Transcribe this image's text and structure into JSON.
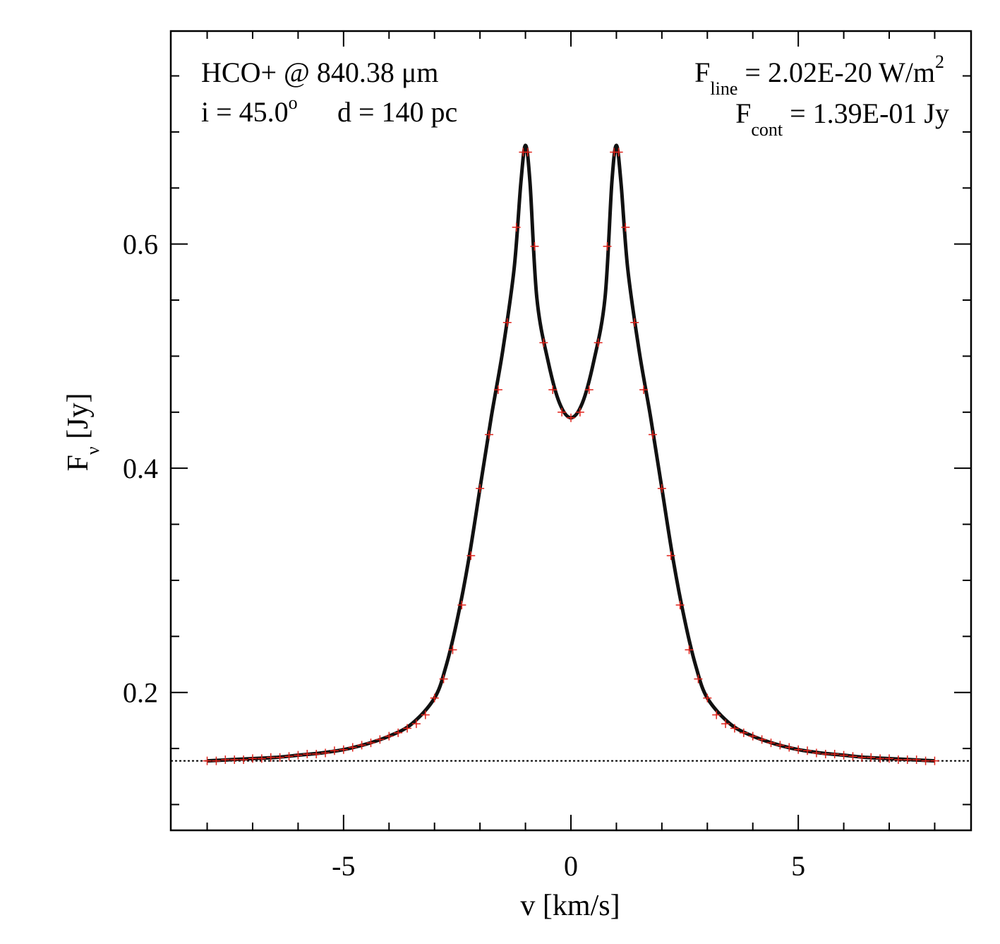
{
  "chart_data": {
    "type": "line",
    "title": "",
    "xlabel": "v [km/s]",
    "ylabel": {
      "main": "F",
      "sub": "ν",
      "rest": " [Jy]"
    },
    "xlim": [
      -8.8,
      8.8
    ],
    "ylim": [
      0.077,
      0.79
    ],
    "x_ticks": [
      -5,
      0,
      5
    ],
    "x_tick_labels": [
      "-5",
      "0",
      "5"
    ],
    "x_minor_step": 1,
    "y_ticks": [
      0.2,
      0.4,
      0.6
    ],
    "y_tick_labels": [
      "0.2",
      "0.4",
      "0.6"
    ],
    "y_minor_step": 0.05,
    "grid": false,
    "legend": "none",
    "annotations": {
      "species": "HCO+ @ 840.38 μm",
      "geom_i_prefix": "i = 45.0",
      "geom_i_deg": "o",
      "geom_d": "d = 140 pc",
      "fline_main": "F",
      "fline_sub": "line",
      "fline_value": " = 2.02E-20 W/m",
      "fline_exp": "2",
      "fcont_main": "F",
      "fcont_sub": "cont",
      "fcont_value": " = 1.39E-01 Jy"
    },
    "continuum_level": 0.139,
    "series": [
      {
        "style": "solid-black-thick",
        "x": [
          -8.0,
          -7.5,
          -7.0,
          -6.5,
          -6.0,
          -5.5,
          -5.0,
          -4.5,
          -4.0,
          -3.5,
          -3.0,
          -2.75,
          -2.5,
          -2.25,
          -2.0,
          -1.75,
          -1.5,
          -1.25,
          -1.1,
          -1.0,
          -0.9,
          -0.75,
          -0.5,
          -0.25,
          0.0,
          0.25,
          0.5,
          0.75,
          0.9,
          1.0,
          1.1,
          1.25,
          1.5,
          1.75,
          2.0,
          2.25,
          2.5,
          2.75,
          3.0,
          3.5,
          4.0,
          4.5,
          5.0,
          5.5,
          6.0,
          6.5,
          7.0,
          7.5,
          8.0
        ],
        "y": [
          0.139,
          0.14,
          0.141,
          0.142,
          0.144,
          0.146,
          0.149,
          0.154,
          0.161,
          0.172,
          0.195,
          0.223,
          0.265,
          0.318,
          0.382,
          0.446,
          0.505,
          0.578,
          0.655,
          0.688,
          0.655,
          0.552,
          0.495,
          0.458,
          0.445,
          0.458,
          0.495,
          0.552,
          0.655,
          0.688,
          0.655,
          0.578,
          0.505,
          0.446,
          0.382,
          0.318,
          0.265,
          0.223,
          0.195,
          0.172,
          0.161,
          0.154,
          0.149,
          0.146,
          0.144,
          0.142,
          0.141,
          0.14,
          0.139
        ]
      }
    ],
    "markers": {
      "style": "red-plus",
      "color": "#e0221a",
      "x": [
        -8.0,
        -7.8,
        -7.6,
        -7.4,
        -7.2,
        -7.0,
        -6.8,
        -6.6,
        -6.4,
        -6.2,
        -6.0,
        -5.8,
        -5.6,
        -5.4,
        -5.2,
        -5.0,
        -4.8,
        -4.6,
        -4.4,
        -4.2,
        -4.0,
        -3.8,
        -3.6,
        -3.4,
        -3.2,
        -3.0,
        -2.8,
        -2.6,
        -2.4,
        -2.2,
        -2.0,
        -1.8,
        -1.6,
        -1.4,
        -1.2,
        -1.05,
        -0.95,
        -0.8,
        -0.6,
        -0.4,
        -0.2,
        0.0,
        0.2,
        0.4,
        0.6,
        0.8,
        0.95,
        1.05,
        1.2,
        1.4,
        1.6,
        1.8,
        2.0,
        2.2,
        2.4,
        2.6,
        2.8,
        3.0,
        3.2,
        3.4,
        3.6,
        3.8,
        4.0,
        4.2,
        4.4,
        4.6,
        4.8,
        5.0,
        5.2,
        5.4,
        5.6,
        5.8,
        6.0,
        6.2,
        6.4,
        6.6,
        6.8,
        7.0,
        7.2,
        7.4,
        7.6,
        7.8,
        8.0
      ],
      "y": [
        0.139,
        0.139,
        0.14,
        0.14,
        0.14,
        0.141,
        0.141,
        0.142,
        0.142,
        0.143,
        0.144,
        0.145,
        0.145,
        0.146,
        0.148,
        0.149,
        0.151,
        0.153,
        0.155,
        0.158,
        0.161,
        0.164,
        0.168,
        0.172,
        0.18,
        0.195,
        0.212,
        0.238,
        0.278,
        0.322,
        0.382,
        0.43,
        0.47,
        0.53,
        0.615,
        0.682,
        0.682,
        0.598,
        0.512,
        0.47,
        0.45,
        0.445,
        0.45,
        0.47,
        0.512,
        0.598,
        0.682,
        0.682,
        0.615,
        0.53,
        0.47,
        0.43,
        0.382,
        0.322,
        0.278,
        0.238,
        0.212,
        0.195,
        0.18,
        0.172,
        0.168,
        0.164,
        0.161,
        0.158,
        0.155,
        0.153,
        0.151,
        0.149,
        0.148,
        0.146,
        0.145,
        0.145,
        0.144,
        0.143,
        0.142,
        0.142,
        0.141,
        0.141,
        0.14,
        0.14,
        0.14,
        0.139,
        0.139
      ]
    }
  }
}
